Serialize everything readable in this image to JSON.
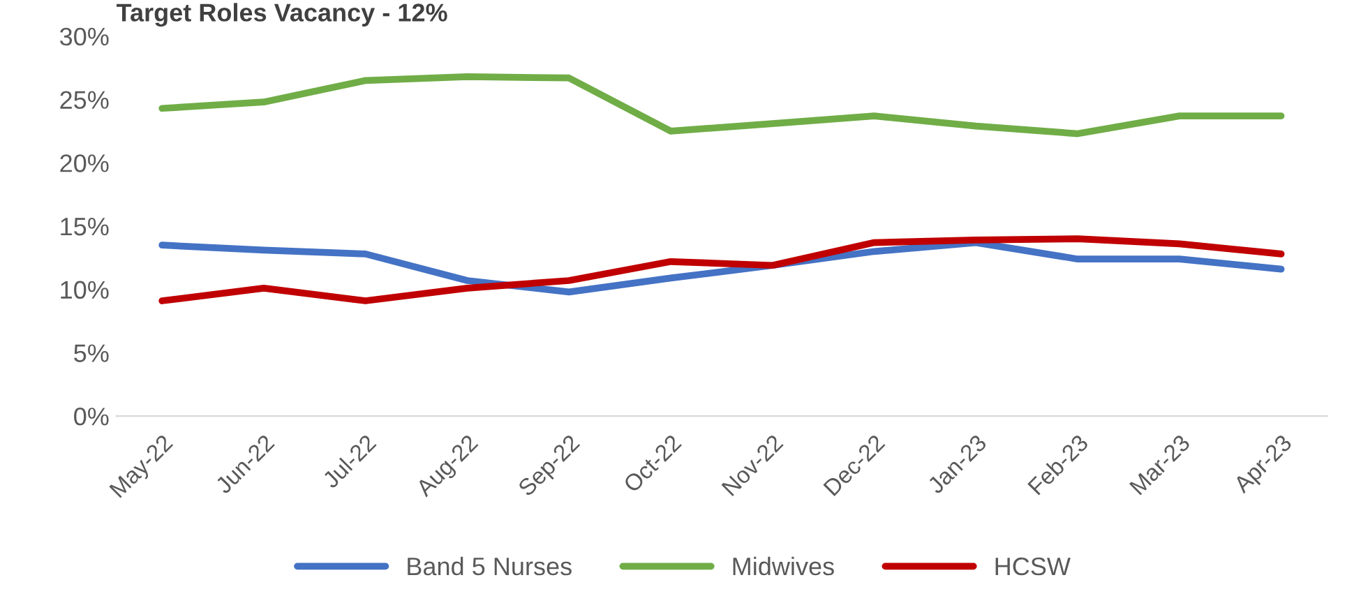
{
  "chart_data": {
    "type": "line",
    "title": "Target Roles Vacancy - 12%",
    "categories": [
      "May-22",
      "Jun-22",
      "Jul-22",
      "Aug-22",
      "Sep-22",
      "Oct-22",
      "Nov-22",
      "Dec-22",
      "Jan-23",
      "Feb-23",
      "Mar-23",
      "Apr-23"
    ],
    "series": [
      {
        "name": "Band 5 Nurses",
        "color": "#4472c4",
        "values": [
          13.5,
          13.1,
          12.8,
          10.7,
          9.8,
          10.9,
          11.9,
          13.0,
          13.7,
          12.4,
          12.4,
          11.6
        ]
      },
      {
        "name": "Midwives",
        "color": "#70ad47",
        "values": [
          24.3,
          24.8,
          26.5,
          26.8,
          26.7,
          22.5,
          23.1,
          23.7,
          22.9,
          22.3,
          23.7,
          23.7
        ]
      },
      {
        "name": "HCSW",
        "color": "#c00000",
        "values": [
          9.1,
          10.1,
          9.1,
          10.1,
          10.7,
          12.2,
          11.9,
          13.7,
          13.9,
          14.0,
          13.6,
          12.8
        ]
      }
    ],
    "ylim": [
      0,
      30
    ],
    "yticks": [
      {
        "value": 0,
        "label": "0%"
      },
      {
        "value": 5,
        "label": "5%"
      },
      {
        "value": 10,
        "label": "10%"
      },
      {
        "value": 15,
        "label": "15%"
      },
      {
        "value": 20,
        "label": "20%"
      },
      {
        "value": 25,
        "label": "25%"
      },
      {
        "value": 30,
        "label": "30%"
      }
    ],
    "grid": false,
    "legend": "bottom",
    "marker": "none",
    "line_style": "solid"
  }
}
